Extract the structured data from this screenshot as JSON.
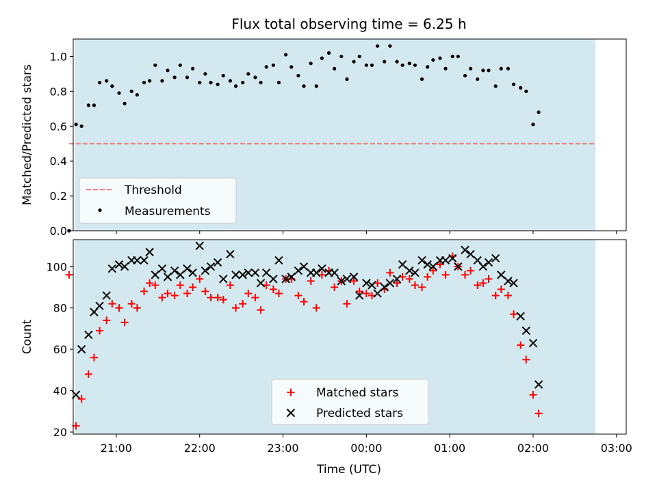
{
  "title": "Flux total observing time = 6.25 h",
  "xlabel": "Time (UTC)",
  "xticks": [
    "21:00",
    "22:00",
    "23:00",
    "00:00",
    "01:00",
    "02:00",
    "03:00"
  ],
  "colors": {
    "shade": "#d3e9ef",
    "threshold": "#f08080",
    "measurement": "#000000",
    "matched": "#ff0000",
    "predicted": "#000000"
  },
  "chart_data": [
    {
      "type": "scatter",
      "ylabel": "Matched/Predicted stars",
      "ylim": [
        0,
        1.1
      ],
      "yticks": [
        "0.0",
        "0.2",
        "0.4",
        "0.6",
        "0.8",
        "1.0"
      ],
      "xlim": [
        "20:29",
        "03:07"
      ],
      "shaded_interval": [
        "20:30",
        "02:45"
      ],
      "threshold": {
        "name": "Threshold",
        "value": 0.5,
        "x_range": [
          "20:26",
          "02:45"
        ]
      },
      "legend": [
        "Threshold",
        "Measurements"
      ],
      "series": [
        {
          "name": "Measurements",
          "points": [
            [
              "20:26",
              0.0
            ],
            [
              "20:31",
              0.61
            ],
            [
              "20:35",
              0.6
            ],
            [
              "20:40",
              0.72
            ],
            [
              "20:44",
              0.72
            ],
            [
              "20:48",
              0.85
            ],
            [
              "20:53",
              0.86
            ],
            [
              "20:57",
              0.83
            ],
            [
              "21:02",
              0.79
            ],
            [
              "21:06",
              0.73
            ],
            [
              "21:11",
              0.8
            ],
            [
              "21:15",
              0.78
            ],
            [
              "21:20",
              0.85
            ],
            [
              "21:24",
              0.86
            ],
            [
              "21:28",
              0.95
            ],
            [
              "21:33",
              0.86
            ],
            [
              "21:37",
              0.92
            ],
            [
              "21:42",
              0.88
            ],
            [
              "21:46",
              0.95
            ],
            [
              "21:51",
              0.88
            ],
            [
              "21:55",
              0.93
            ],
            [
              "22:00",
              0.85
            ],
            [
              "22:04",
              0.9
            ],
            [
              "22:08",
              0.85
            ],
            [
              "22:13",
              0.84
            ],
            [
              "22:17",
              0.89
            ],
            [
              "22:22",
              0.86
            ],
            [
              "22:26",
              0.83
            ],
            [
              "22:31",
              0.85
            ],
            [
              "22:35",
              0.9
            ],
            [
              "22:40",
              0.88
            ],
            [
              "22:44",
              0.85
            ],
            [
              "22:48",
              0.94
            ],
            [
              "22:53",
              0.95
            ],
            [
              "22:57",
              0.85
            ],
            [
              "23:02",
              1.01
            ],
            [
              "23:06",
              0.94
            ],
            [
              "23:11",
              0.89
            ],
            [
              "23:15",
              0.83
            ],
            [
              "23:20",
              0.96
            ],
            [
              "23:24",
              0.83
            ],
            [
              "23:28",
              0.99
            ],
            [
              "23:33",
              1.02
            ],
            [
              "23:37",
              0.93
            ],
            [
              "23:42",
              1.0
            ],
            [
              "23:46",
              0.87
            ],
            [
              "23:51",
              0.97
            ],
            [
              "23:55",
              1.0
            ],
            [
              "00:00",
              0.95
            ],
            [
              "00:04",
              0.95
            ],
            [
              "00:08",
              1.06
            ],
            [
              "00:13",
              0.97
            ],
            [
              "00:17",
              1.06
            ],
            [
              "00:22",
              0.97
            ],
            [
              "00:26",
              0.95
            ],
            [
              "00:31",
              0.96
            ],
            [
              "00:35",
              0.95
            ],
            [
              "00:40",
              0.87
            ],
            [
              "00:44",
              0.94
            ],
            [
              "00:48",
              0.98
            ],
            [
              "00:53",
              0.99
            ],
            [
              "00:57",
              0.93
            ],
            [
              "01:02",
              1.0
            ],
            [
              "01:06",
              1.0
            ],
            [
              "01:11",
              0.89
            ],
            [
              "01:15",
              0.93
            ],
            [
              "01:20",
              0.87
            ],
            [
              "01:24",
              0.92
            ],
            [
              "01:28",
              0.92
            ],
            [
              "01:33",
              0.83
            ],
            [
              "01:37",
              0.93
            ],
            [
              "01:42",
              0.93
            ],
            [
              "01:46",
              0.84
            ],
            [
              "01:51",
              0.82
            ],
            [
              "01:55",
              0.8
            ],
            [
              "02:00",
              0.61
            ],
            [
              "02:04",
              0.68
            ]
          ]
        }
      ]
    },
    {
      "type": "scatter",
      "ylabel": "Count",
      "ylim": [
        19,
        113
      ],
      "yticks": [
        "20",
        "40",
        "60",
        "80",
        "100"
      ],
      "xlim": [
        "20:29",
        "03:07"
      ],
      "shaded_interval": [
        "20:30",
        "02:45"
      ],
      "legend": [
        "Matched stars",
        "Predicted stars"
      ],
      "series": [
        {
          "name": "Matched stars",
          "points": [
            [
              "20:26",
              96
            ],
            [
              "20:31",
              23
            ],
            [
              "20:35",
              36
            ],
            [
              "20:40",
              48
            ],
            [
              "20:44",
              56
            ],
            [
              "20:48",
              69
            ],
            [
              "20:53",
              74
            ],
            [
              "20:57",
              82
            ],
            [
              "21:02",
              80
            ],
            [
              "21:06",
              73
            ],
            [
              "21:11",
              82
            ],
            [
              "21:15",
              80
            ],
            [
              "21:20",
              88
            ],
            [
              "21:24",
              92
            ],
            [
              "21:28",
              91
            ],
            [
              "21:33",
              85
            ],
            [
              "21:37",
              87
            ],
            [
              "21:42",
              86
            ],
            [
              "21:46",
              91
            ],
            [
              "21:51",
              87
            ],
            [
              "21:55",
              90
            ],
            [
              "22:00",
              94
            ],
            [
              "22:04",
              88
            ],
            [
              "22:08",
              85
            ],
            [
              "22:13",
              85
            ],
            [
              "22:17",
              84
            ],
            [
              "22:22",
              91
            ],
            [
              "22:26",
              80
            ],
            [
              "22:31",
              82
            ],
            [
              "22:35",
              87
            ],
            [
              "22:40",
              85
            ],
            [
              "22:44",
              79
            ],
            [
              "22:48",
              91
            ],
            [
              "22:53",
              89
            ],
            [
              "22:57",
              87
            ],
            [
              "23:02",
              94
            ],
            [
              "23:06",
              94
            ],
            [
              "23:11",
              86
            ],
            [
              "23:15",
              83
            ],
            [
              "23:20",
              93
            ],
            [
              "23:24",
              80
            ],
            [
              "23:28",
              96
            ],
            [
              "23:33",
              98
            ],
            [
              "23:37",
              90
            ],
            [
              "23:42",
              93
            ],
            [
              "23:46",
              82
            ],
            [
              "23:51",
              93
            ],
            [
              "23:55",
              88
            ],
            [
              "00:00",
              87
            ],
            [
              "00:04",
              86
            ],
            [
              "00:08",
              92
            ],
            [
              "00:13",
              89
            ],
            [
              "00:17",
              97
            ],
            [
              "00:22",
              92
            ],
            [
              "00:26",
              95
            ],
            [
              "00:31",
              94
            ],
            [
              "00:35",
              91
            ],
            [
              "00:40",
              90
            ],
            [
              "00:44",
              95
            ],
            [
              "00:48",
              98
            ],
            [
              "00:53",
              101
            ],
            [
              "00:57",
              96
            ],
            [
              "01:02",
              105
            ],
            [
              "01:06",
              100
            ],
            [
              "01:11",
              96
            ],
            [
              "01:15",
              98
            ],
            [
              "01:20",
              91
            ],
            [
              "01:24",
              92
            ],
            [
              "01:28",
              94
            ],
            [
              "01:33",
              86
            ],
            [
              "01:37",
              89
            ],
            [
              "01:42",
              86
            ],
            [
              "01:46",
              77
            ],
            [
              "01:51",
              62
            ],
            [
              "01:55",
              55
            ],
            [
              "02:00",
              38
            ],
            [
              "02:04",
              29
            ]
          ]
        },
        {
          "name": "Predicted stars",
          "points": [
            [
              "20:31",
              38
            ],
            [
              "20:35",
              60
            ],
            [
              "20:40",
              67
            ],
            [
              "20:44",
              78
            ],
            [
              "20:48",
              81
            ],
            [
              "20:53",
              86
            ],
            [
              "20:57",
              99
            ],
            [
              "21:02",
              101
            ],
            [
              "21:06",
              100
            ],
            [
              "21:11",
              103
            ],
            [
              "21:15",
              103
            ],
            [
              "21:20",
              103
            ],
            [
              "21:24",
              107
            ],
            [
              "21:28",
              96
            ],
            [
              "21:33",
              99
            ],
            [
              "21:37",
              95
            ],
            [
              "21:42",
              98
            ],
            [
              "21:46",
              96
            ],
            [
              "21:51",
              99
            ],
            [
              "21:55",
              97
            ],
            [
              "22:00",
              110
            ],
            [
              "22:04",
              98
            ],
            [
              "22:08",
              100
            ],
            [
              "22:13",
              102
            ],
            [
              "22:17",
              94
            ],
            [
              "22:22",
              106
            ],
            [
              "22:26",
              96
            ],
            [
              "22:31",
              96
            ],
            [
              "22:35",
              97
            ],
            [
              "22:40",
              97
            ],
            [
              "22:44",
              92
            ],
            [
              "22:48",
              97
            ],
            [
              "22:53",
              94
            ],
            [
              "22:57",
              103
            ],
            [
              "23:02",
              94
            ],
            [
              "23:06",
              95
            ],
            [
              "23:11",
              98
            ],
            [
              "23:15",
              100
            ],
            [
              "23:20",
              97
            ],
            [
              "23:24",
              97
            ],
            [
              "23:28",
              99
            ],
            [
              "23:33",
              97
            ],
            [
              "23:37",
              97
            ],
            [
              "23:42",
              93
            ],
            [
              "23:46",
              94
            ],
            [
              "23:51",
              95
            ],
            [
              "23:55",
              86
            ],
            [
              "00:00",
              92
            ],
            [
              "00:04",
              91
            ],
            [
              "00:08",
              87
            ],
            [
              "00:13",
              90
            ],
            [
              "00:17",
              92
            ],
            [
              "00:22",
              94
            ],
            [
              "00:26",
              101
            ],
            [
              "00:31",
              98
            ],
            [
              "00:35",
              97
            ],
            [
              "00:40",
              103
            ],
            [
              "00:44",
              101
            ],
            [
              "00:48",
              100
            ],
            [
              "00:53",
              103
            ],
            [
              "00:57",
              103
            ],
            [
              "01:02",
              104
            ],
            [
              "01:06",
              100
            ],
            [
              "01:11",
              108
            ],
            [
              "01:15",
              106
            ],
            [
              "01:20",
              103
            ],
            [
              "01:24",
              100
            ],
            [
              "01:28",
              102
            ],
            [
              "01:33",
              104
            ],
            [
              "01:37",
              96
            ],
            [
              "01:42",
              93
            ],
            [
              "01:46",
              92
            ],
            [
              "01:51",
              76
            ],
            [
              "01:55",
              69
            ],
            [
              "02:00",
              63
            ],
            [
              "02:04",
              43
            ]
          ]
        }
      ]
    }
  ]
}
